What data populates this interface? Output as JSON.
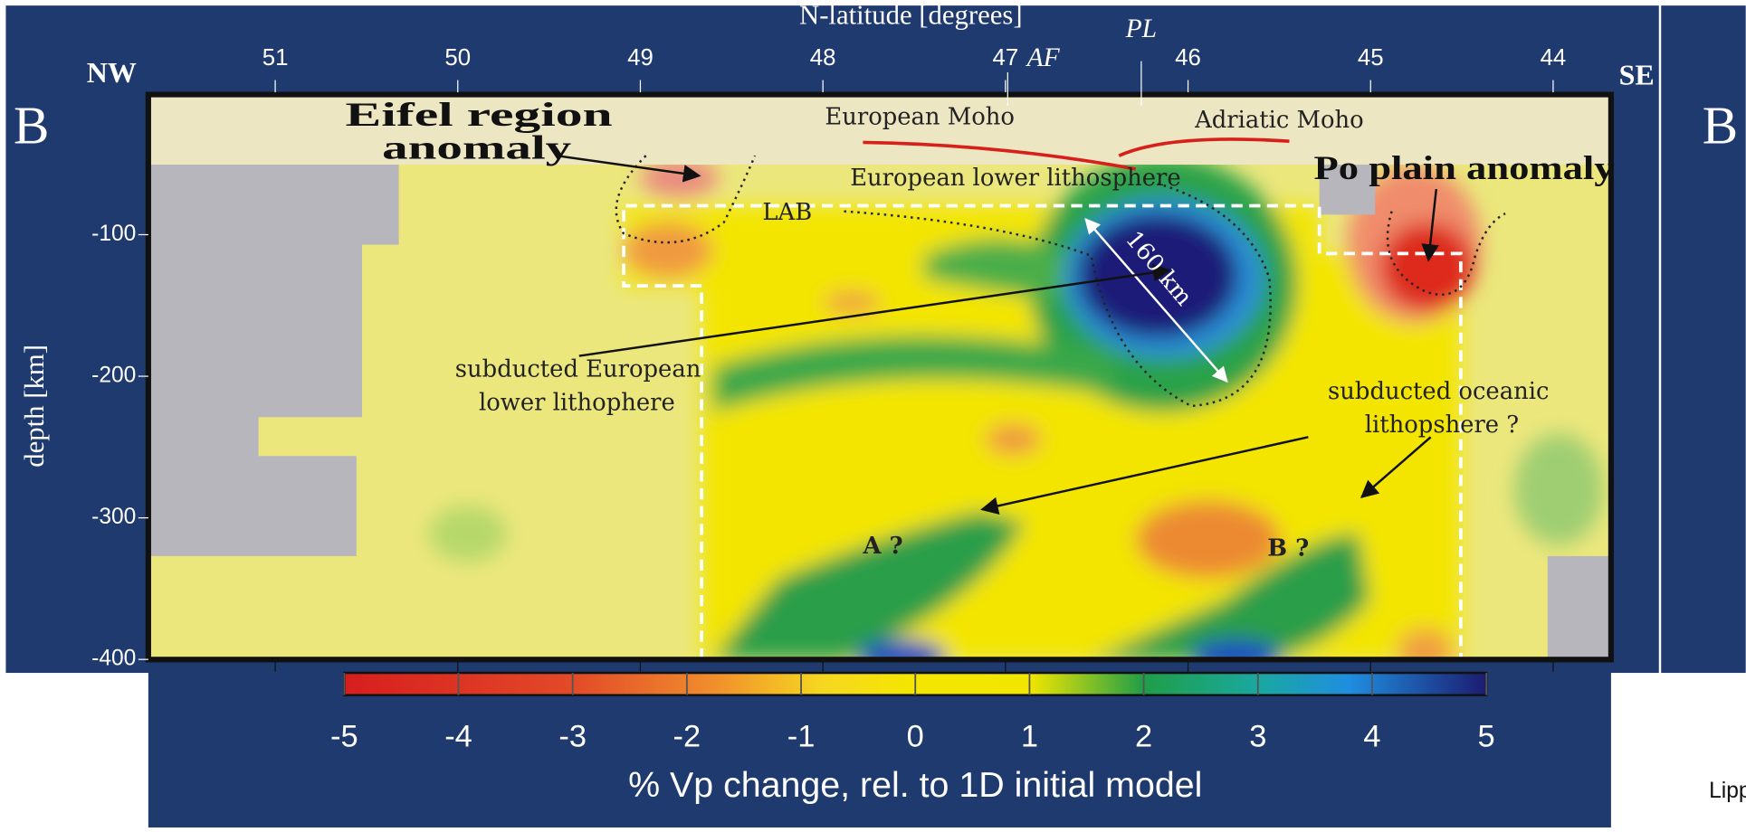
{
  "header": {
    "left": "NW",
    "right": "SE",
    "panel_left": "B",
    "panel_right": "B",
    "credit": "Lippi"
  },
  "top_axis": {
    "title": "N-latitude [degrees]",
    "ticks": [
      51,
      50,
      49,
      48,
      47,
      46,
      45,
      44
    ],
    "markers": [
      "PL",
      "AF"
    ]
  },
  "left_axis": {
    "title": "depth [km]",
    "ticks": [
      -100,
      -200,
      -300,
      -400
    ]
  },
  "colorbar": {
    "title": "% Vp change, rel. to 1D initial model",
    "ticks": [
      -5,
      -4,
      -3,
      -2,
      -1,
      0,
      1,
      2,
      3,
      4,
      5
    ]
  },
  "annotations": {
    "eifel": [
      "Eifel region",
      "anomaly"
    ],
    "european_moho": "European Moho",
    "adriatic_moho": "Adriatic Moho",
    "european_lower_lithosphere": "European lower lithosphere",
    "lab": "LAB",
    "slab_length": "160 km",
    "po_plain": "Po plain anomaly",
    "subducted_european": [
      "subducted European",
      "lower lithophere"
    ],
    "subducted_oceanic": [
      "subducted oceanic",
      "lithopshere ?"
    ],
    "a": "A ?",
    "b": "B ?"
  }
}
